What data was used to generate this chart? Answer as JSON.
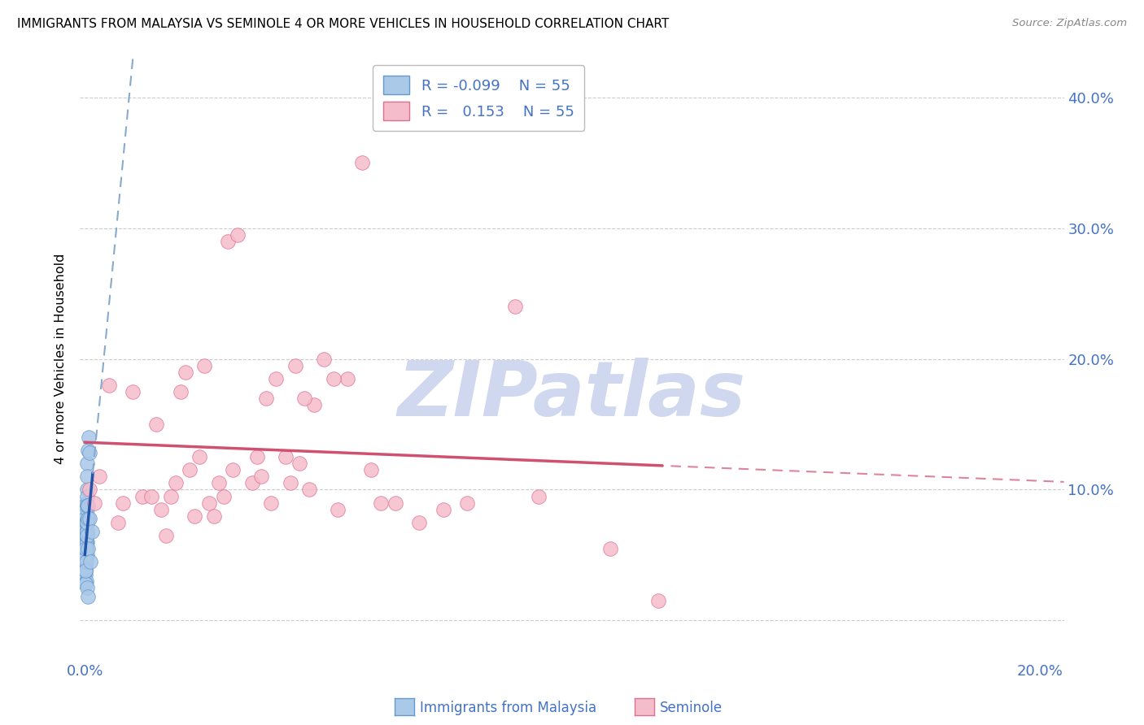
{
  "title": "IMMIGRANTS FROM MALAYSIA VS SEMINOLE 4 OR MORE VEHICLES IN HOUSEHOLD CORRELATION CHART",
  "source": "Source: ZipAtlas.com",
  "ylabel": "4 or more Vehicles in Household",
  "x_min": -0.001,
  "x_max": 0.205,
  "y_min": -0.03,
  "y_max": 0.43,
  "x_ticks": [
    0.0,
    0.05,
    0.1,
    0.15,
    0.2
  ],
  "x_tick_labels": [
    "0.0%",
    "",
    "",
    "",
    "20.0%"
  ],
  "y_ticks": [
    0.0,
    0.1,
    0.2,
    0.3,
    0.4
  ],
  "y_tick_labels_right": [
    "",
    "10.0%",
    "20.0%",
    "30.0%",
    "40.0%"
  ],
  "malaysia_color": "#aac8e8",
  "malaysia_edge": "#6699cc",
  "malaysia_trend_solid": "#2255aa",
  "malaysia_trend_dash": "#88aacc",
  "malaysia_x": [
    0.0002,
    0.0003,
    0.0004,
    0.0003,
    0.0002,
    0.0004,
    0.0005,
    0.0003,
    0.0002,
    0.0004,
    0.0003,
    0.0002,
    0.0003,
    0.0004,
    0.0002,
    0.0003,
    0.0002,
    0.0003,
    0.0004,
    0.0002,
    0.0003,
    0.0003,
    0.0002,
    0.0004,
    0.0003,
    0.0002,
    0.0002,
    0.0003,
    0.0002,
    0.0003,
    0.0005,
    0.0002,
    0.0003,
    0.0002,
    0.0006,
    0.0007,
    0.0004,
    0.0002,
    0.0004,
    0.0005,
    0.0008,
    0.0005,
    0.0007,
    0.0004,
    0.0002,
    0.0006,
    0.0009,
    0.0003,
    0.0002,
    0.0007,
    0.001,
    0.0005,
    0.0006,
    0.0015,
    0.0012
  ],
  "malaysia_y": [
    0.07,
    0.08,
    0.06,
    0.09,
    0.07,
    0.05,
    0.1,
    0.075,
    0.055,
    0.085,
    0.065,
    0.04,
    0.06,
    0.075,
    0.05,
    0.065,
    0.035,
    0.055,
    0.095,
    0.045,
    0.03,
    0.065,
    0.048,
    0.088,
    0.058,
    0.038,
    0.028,
    0.075,
    0.045,
    0.068,
    0.12,
    0.038,
    0.055,
    0.028,
    0.13,
    0.078,
    0.068,
    0.048,
    0.088,
    0.11,
    0.14,
    0.075,
    0.088,
    0.065,
    0.055,
    0.078,
    0.128,
    0.045,
    0.038,
    0.055,
    0.078,
    0.025,
    0.018,
    0.068,
    0.045
  ],
  "seminole_color": "#f5bccb",
  "seminole_edge": "#e07090",
  "seminole_trend": "#d05070",
  "seminole_x": [
    0.001,
    0.003,
    0.005,
    0.02,
    0.002,
    0.04,
    0.03,
    0.015,
    0.045,
    0.025,
    0.018,
    0.055,
    0.035,
    0.012,
    0.038,
    0.022,
    0.048,
    0.016,
    0.028,
    0.06,
    0.01,
    0.042,
    0.026,
    0.052,
    0.019,
    0.032,
    0.044,
    0.008,
    0.023,
    0.036,
    0.058,
    0.014,
    0.046,
    0.031,
    0.021,
    0.05,
    0.039,
    0.007,
    0.027,
    0.043,
    0.062,
    0.024,
    0.037,
    0.053,
    0.017,
    0.029,
    0.047,
    0.07,
    0.065,
    0.09,
    0.075,
    0.11,
    0.095,
    0.12,
    0.08
  ],
  "seminole_y": [
    0.1,
    0.11,
    0.18,
    0.175,
    0.09,
    0.185,
    0.29,
    0.15,
    0.12,
    0.195,
    0.095,
    0.185,
    0.105,
    0.095,
    0.17,
    0.115,
    0.165,
    0.085,
    0.105,
    0.115,
    0.175,
    0.125,
    0.09,
    0.185,
    0.105,
    0.295,
    0.195,
    0.09,
    0.08,
    0.125,
    0.35,
    0.095,
    0.17,
    0.115,
    0.19,
    0.2,
    0.09,
    0.075,
    0.08,
    0.105,
    0.09,
    0.125,
    0.11,
    0.085,
    0.065,
    0.095,
    0.1,
    0.075,
    0.09,
    0.24,
    0.085,
    0.055,
    0.095,
    0.015,
    0.09
  ],
  "watermark_text": "ZIPatlas",
  "watermark_color": "#d0d8f0",
  "grid_color": "#cccccc",
  "bg_color": "#ffffff",
  "tick_color": "#4472c4",
  "legend_color": "#4472c4"
}
